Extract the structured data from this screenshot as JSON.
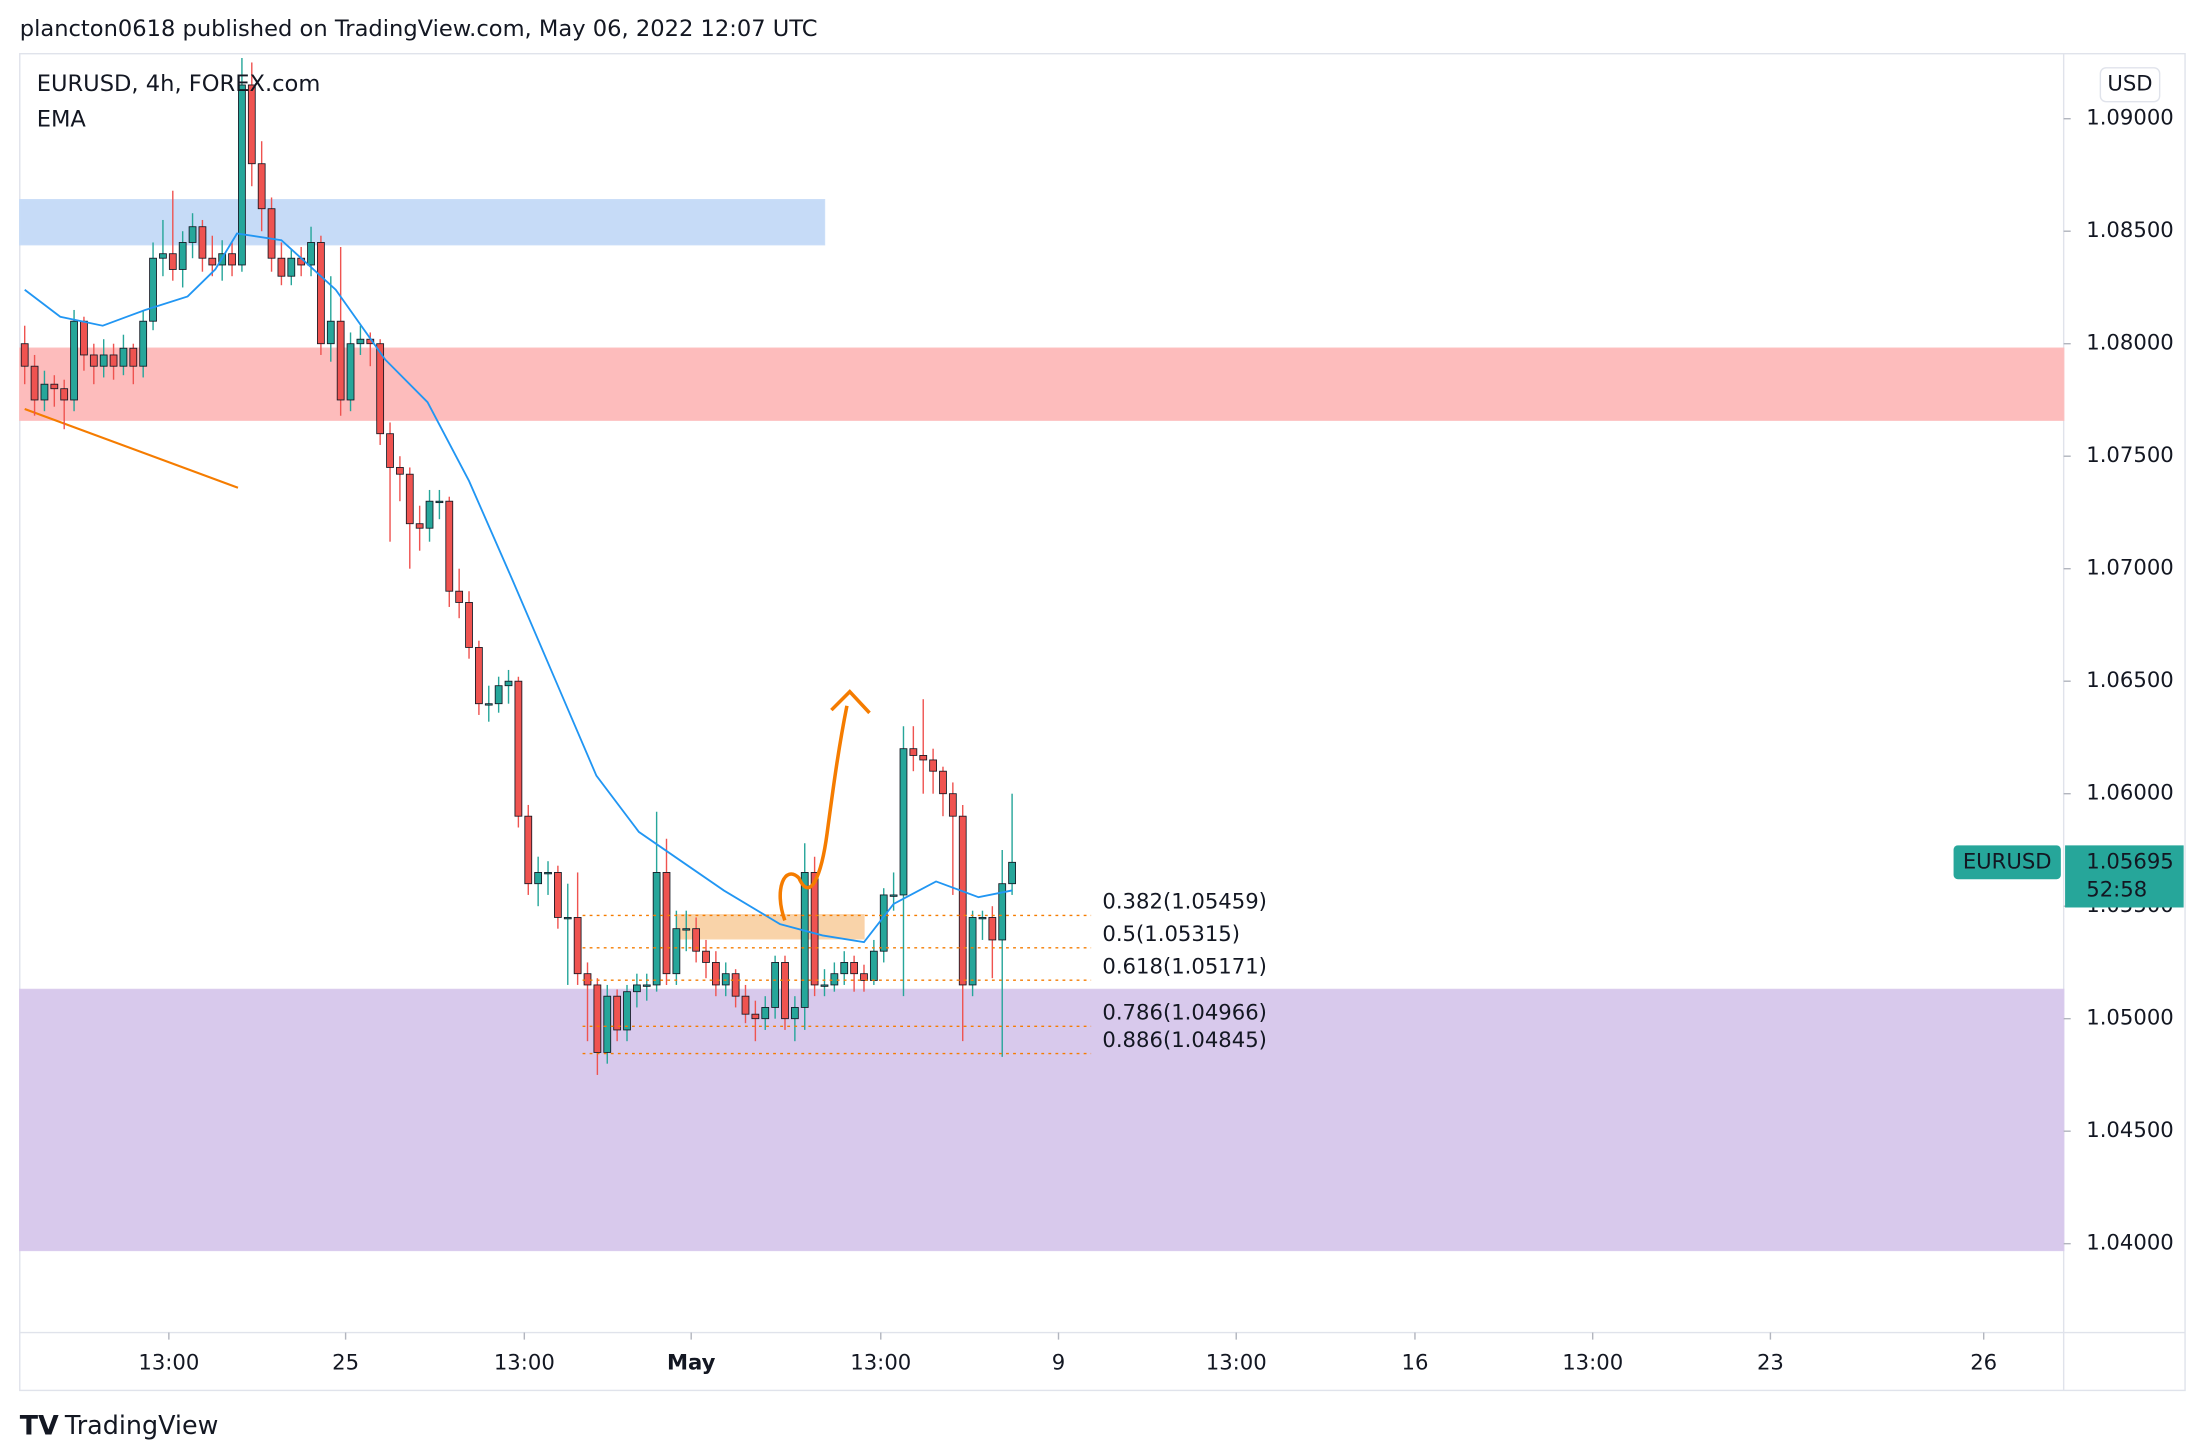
{
  "header": "plancton0618 published on TradingView.com, May 06, 2022 12:07 UTC",
  "footer": "TradingView",
  "chart_data": {
    "type": "candlestick",
    "symbol": "EURUSD, 4h, FOREX.com",
    "indicator": "EMA",
    "currency": "USD",
    "up_color": "#26a69a",
    "down_color": "#ef5350",
    "xlim": [
      -0.5,
      206.5
    ],
    "ylim": [
      1.03605,
      1.09289
    ],
    "yticks": [
      {
        "value": 1.09,
        "label": "1.09000"
      },
      {
        "value": 1.085,
        "label": "1.08500"
      },
      {
        "value": 1.08,
        "label": "1.08000"
      },
      {
        "value": 1.075,
        "label": "1.07500"
      },
      {
        "value": 1.07,
        "label": "1.07000"
      },
      {
        "value": 1.065,
        "label": "1.06500"
      },
      {
        "value": 1.06,
        "label": "1.06000"
      },
      {
        "value": 1.055,
        "label": "1.05500"
      },
      {
        "value": 1.05,
        "label": "1.05000"
      },
      {
        "value": 1.045,
        "label": "1.04500"
      },
      {
        "value": 1.04,
        "label": "1.04000"
      }
    ],
    "xticks": [
      {
        "value": 14.6,
        "label": "13:00"
      },
      {
        "value": 32.5,
        "label": "25"
      },
      {
        "value": 50.6,
        "label": "13:00"
      },
      {
        "value": 67.5,
        "label": "May"
      },
      {
        "value": 86.7,
        "label": "13:00"
      },
      {
        "value": 104.7,
        "label": "9"
      },
      {
        "value": 122.7,
        "label": "13:00"
      },
      {
        "value": 140.8,
        "label": "16"
      },
      {
        "value": 158.8,
        "label": "13:00"
      },
      {
        "value": 176.8,
        "label": "23"
      },
      {
        "value": 198.4,
        "label": "26"
      }
    ],
    "candles": [
      [
        1.08,
        1.0808,
        1.0782,
        1.079
      ],
      [
        1.079,
        1.0795,
        1.0768,
        1.0775
      ],
      [
        1.0775,
        1.0788,
        1.077,
        1.0782
      ],
      [
        1.0782,
        1.0786,
        1.0772,
        1.078
      ],
      [
        1.078,
        1.0784,
        1.0762,
        1.0775
      ],
      [
        1.0775,
        1.0815,
        1.077,
        1.081
      ],
      [
        1.081,
        1.0812,
        1.0788,
        1.0795
      ],
      [
        1.0795,
        1.08,
        1.0782,
        1.079
      ],
      [
        1.079,
        1.0802,
        1.0785,
        1.0795
      ],
      [
        1.0795,
        1.08,
        1.0784,
        1.079
      ],
      [
        1.079,
        1.0804,
        1.0786,
        1.0798
      ],
      [
        1.0798,
        1.08,
        1.0782,
        1.079
      ],
      [
        1.079,
        1.0815,
        1.0785,
        1.081
      ],
      [
        1.081,
        1.0845,
        1.0806,
        1.0838
      ],
      [
        1.0838,
        1.0855,
        1.083,
        1.084
      ],
      [
        1.084,
        1.0868,
        1.0828,
        1.0833
      ],
      [
        1.0833,
        1.085,
        1.0825,
        1.0845
      ],
      [
        1.0845,
        1.0858,
        1.0838,
        1.0852
      ],
      [
        1.0852,
        1.0855,
        1.0832,
        1.0838
      ],
      [
        1.0838,
        1.0848,
        1.083,
        1.0835
      ],
      [
        1.0835,
        1.0846,
        1.0828,
        1.084
      ],
      [
        1.084,
        1.0845,
        1.083,
        1.0835
      ],
      [
        1.0835,
        1.0927,
        1.0832,
        1.0915
      ],
      [
        1.0915,
        1.0925,
        1.087,
        1.088
      ],
      [
        1.088,
        1.089,
        1.085,
        1.086
      ],
      [
        1.086,
        1.0865,
        1.0832,
        1.0838
      ],
      [
        1.0838,
        1.0845,
        1.0826,
        1.083
      ],
      [
        1.083,
        1.0842,
        1.0826,
        1.0838
      ],
      [
        1.0838,
        1.0843,
        1.083,
        1.0835
      ],
      [
        1.0835,
        1.0852,
        1.083,
        1.0845
      ],
      [
        1.0845,
        1.0848,
        1.0795,
        1.08
      ],
      [
        1.08,
        1.083,
        1.0792,
        1.081
      ],
      [
        1.081,
        1.0843,
        1.0768,
        1.0775
      ],
      [
        1.0775,
        1.0805,
        1.077,
        1.08
      ],
      [
        1.08,
        1.0808,
        1.0795,
        1.0802
      ],
      [
        1.0802,
        1.0805,
        1.079,
        1.08
      ],
      [
        1.08,
        1.0802,
        1.0755,
        1.076
      ],
      [
        1.076,
        1.0765,
        1.0712,
        1.0745
      ],
      [
        1.0745,
        1.075,
        1.073,
        1.0742
      ],
      [
        1.0742,
        1.0745,
        1.07,
        1.072
      ],
      [
        1.072,
        1.0728,
        1.0708,
        1.0718
      ],
      [
        1.0718,
        1.0735,
        1.0712,
        1.073
      ],
      [
        1.073,
        1.0735,
        1.0722,
        1.073
      ],
      [
        1.073,
        1.0732,
        1.0683,
        1.069
      ],
      [
        1.069,
        1.07,
        1.0678,
        1.0685
      ],
      [
        1.0685,
        1.069,
        1.066,
        1.0665
      ],
      [
        1.0665,
        1.0668,
        1.0635,
        1.064
      ],
      [
        1.064,
        1.0648,
        1.0632,
        1.064
      ],
      [
        1.064,
        1.0652,
        1.0636,
        1.0648
      ],
      [
        1.0648,
        1.0655,
        1.064,
        1.065
      ],
      [
        1.065,
        1.0652,
        1.0585,
        1.059
      ],
      [
        1.059,
        1.0595,
        1.0555,
        1.056
      ],
      [
        1.056,
        1.0572,
        1.055,
        1.0565
      ],
      [
        1.0565,
        1.057,
        1.0555,
        1.0565
      ],
      [
        1.0565,
        1.0568,
        1.054,
        1.0545
      ],
      [
        1.0545,
        1.056,
        1.0515,
        1.0545
      ],
      [
        1.0545,
        1.0565,
        1.0515,
        1.052
      ],
      [
        1.052,
        1.0525,
        1.049,
        1.0515
      ],
      [
        1.0515,
        1.0518,
        1.0475,
        1.0485
      ],
      [
        1.0485,
        1.0515,
        1.048,
        1.051
      ],
      [
        1.051,
        1.0513,
        1.049,
        1.0495
      ],
      [
        1.0495,
        1.0515,
        1.049,
        1.0512
      ],
      [
        1.0512,
        1.052,
        1.0505,
        1.0515
      ],
      [
        1.0515,
        1.052,
        1.0508,
        1.0515
      ],
      [
        1.0515,
        1.0592,
        1.0512,
        1.0565
      ],
      [
        1.0565,
        1.058,
        1.0515,
        1.052
      ],
      [
        1.052,
        1.0548,
        1.0515,
        1.054
      ],
      [
        1.054,
        1.0548,
        1.053,
        1.054
      ],
      [
        1.054,
        1.0545,
        1.0525,
        1.053
      ],
      [
        1.053,
        1.0535,
        1.0518,
        1.0525
      ],
      [
        1.0525,
        1.053,
        1.051,
        1.0515
      ],
      [
        1.0515,
        1.0525,
        1.051,
        1.052
      ],
      [
        1.052,
        1.0522,
        1.0505,
        1.051
      ],
      [
        1.051,
        1.0515,
        1.0498,
        1.0502
      ],
      [
        1.0502,
        1.0508,
        1.049,
        1.05
      ],
      [
        1.05,
        1.051,
        1.0495,
        1.0505
      ],
      [
        1.0505,
        1.0528,
        1.05,
        1.0525
      ],
      [
        1.0525,
        1.0528,
        1.0495,
        1.05
      ],
      [
        1.05,
        1.051,
        1.049,
        1.0505
      ],
      [
        1.0505,
        1.0578,
        1.0495,
        1.0565
      ],
      [
        1.0565,
        1.0572,
        1.051,
        1.0515
      ],
      [
        1.0515,
        1.0522,
        1.051,
        1.0515
      ],
      [
        1.0515,
        1.0525,
        1.0512,
        1.052
      ],
      [
        1.052,
        1.053,
        1.0515,
        1.0525
      ],
      [
        1.0525,
        1.0528,
        1.0512,
        1.052
      ],
      [
        1.052,
        1.0524,
        1.0512,
        1.0517
      ],
      [
        1.0517,
        1.0535,
        1.0515,
        1.053
      ],
      [
        1.053,
        1.0558,
        1.0525,
        1.0555
      ],
      [
        1.0555,
        1.0565,
        1.0548,
        1.0555
      ],
      [
        1.0555,
        1.063,
        1.051,
        1.062
      ],
      [
        1.062,
        1.063,
        1.061,
        1.0617
      ],
      [
        1.0617,
        1.0642,
        1.06,
        1.0615
      ],
      [
        1.0615,
        1.062,
        1.06,
        1.061
      ],
      [
        1.061,
        1.0612,
        1.059,
        1.06
      ],
      [
        1.06,
        1.0605,
        1.0555,
        1.059
      ],
      [
        1.059,
        1.0595,
        1.049,
        1.0515
      ],
      [
        1.0515,
        1.0548,
        1.051,
        1.0545
      ],
      [
        1.0545,
        1.0548,
        1.0535,
        1.0545
      ],
      [
        1.0545,
        1.055,
        1.0518,
        1.0535
      ],
      [
        1.0535,
        1.0575,
        1.0483,
        1.056
      ],
      [
        1.056,
        1.06,
        1.0555,
        1.05695
      ]
    ],
    "ema": {
      "color": "#2196f3",
      "x": [
        0,
        3.6,
        7.9,
        12.2,
        16.5,
        19.3,
        21.5,
        26,
        31.5,
        36.5,
        40.8,
        45,
        49.4,
        53.6,
        57.9,
        62.2,
        66.5,
        70.8,
        76.5,
        80.8,
        85,
        88,
        92.3,
        96.6,
        100
      ],
      "values": [
        1.0824,
        1.0812,
        1.0808,
        1.0815,
        1.0821,
        1.0833,
        1.0849,
        1.0846,
        1.0824,
        1.0793,
        1.0774,
        1.0739,
        1.0695,
        1.0652,
        1.0608,
        1.0583,
        1.057,
        1.0557,
        1.0542,
        1.0537,
        1.0534,
        1.0551,
        1.0561,
        1.0554,
        1.0557
      ]
    },
    "trendline": {
      "color": "#f57c00",
      "x": [
        0,
        21.6
      ],
      "values": [
        1.0771,
        1.0736
      ]
    },
    "zones": [
      {
        "x": [
          -0.5,
          81
        ],
        "values": [
          1.0864,
          1.0844
        ],
        "color": "#c6dbf7"
      },
      {
        "x": [
          -0.5,
          206.5
        ],
        "values": [
          1.0798,
          1.0766
        ],
        "color": "#fdbcbc"
      },
      {
        "x": [
          -0.5,
          206.5
        ],
        "values": [
          1.0513,
          1.0397
        ],
        "color": "#d8c9ec"
      },
      {
        "x": [
          66,
          85
        ],
        "values": [
          1.05462,
          1.05355
        ],
        "color": "#f9d3a9"
      }
    ],
    "fib_color": "#f57c00",
    "fib_x": [
      56.5,
      108
    ],
    "fib": [
      {
        "value": 1.05459,
        "label": "0.382(1.05459)"
      },
      {
        "value": 1.05315,
        "label": "0.5(1.05315)"
      },
      {
        "value": 1.05171,
        "label": "0.618(1.05171)"
      },
      {
        "value": 1.04966,
        "label": "0.786(1.04966)"
      },
      {
        "value": 1.04845,
        "label": "0.886(1.04845)"
      }
    ],
    "last_price": {
      "name": "EURUSD",
      "value": 1.05695,
      "label": "1.05695",
      "countdown": "52:58",
      "color": "#26a69a"
    }
  }
}
